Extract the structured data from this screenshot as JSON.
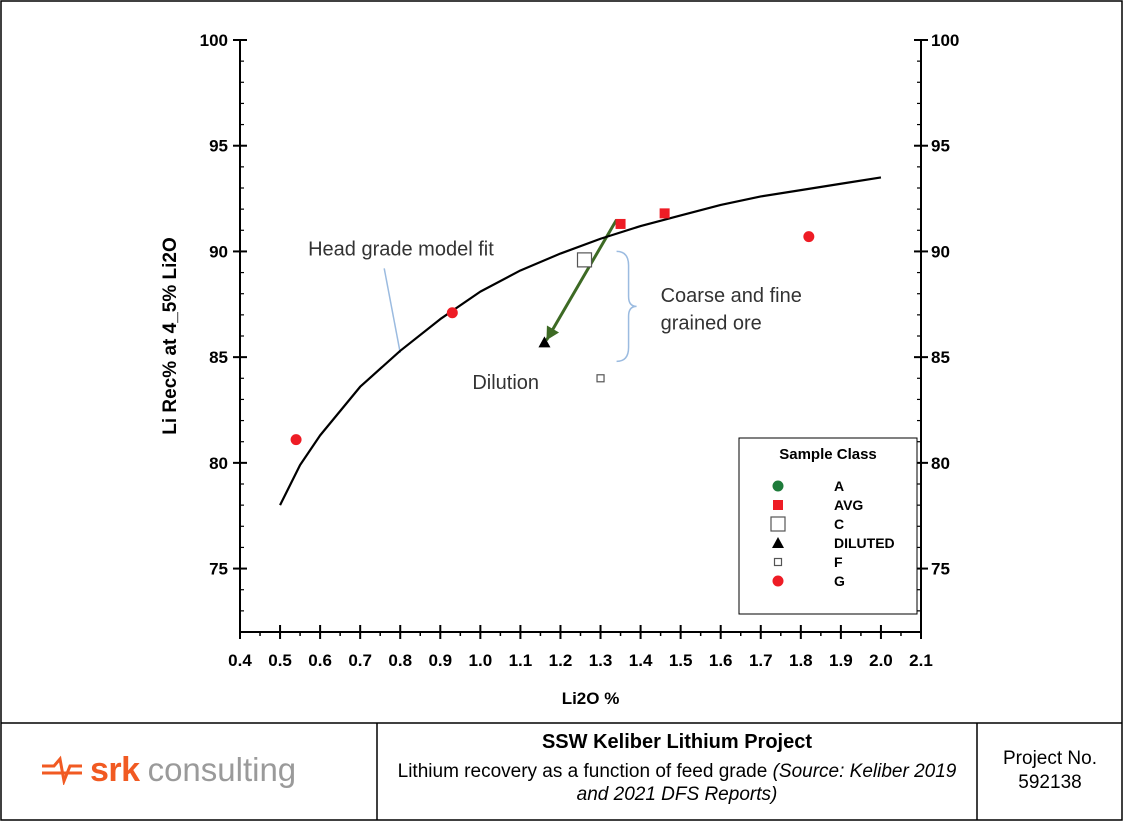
{
  "chart_data": {
    "type": "scatter",
    "title": "",
    "xlabel": "Li2O %",
    "ylabel": "Li Rec% at 4_5% Li2O",
    "xlim": [
      0.4,
      2.1
    ],
    "ylim": [
      72,
      100
    ],
    "x_ticks": [
      0.4,
      0.5,
      0.6,
      0.7,
      0.8,
      0.9,
      1.0,
      1.1,
      1.2,
      1.3,
      1.4,
      1.5,
      1.6,
      1.7,
      1.8,
      1.9,
      2.0,
      2.1
    ],
    "x_tick_labels": [
      "0.4",
      "0.5",
      "0.6",
      "0.7",
      "0.8",
      "0.9",
      "1.0",
      "1.1",
      "1.2",
      "1.3",
      "1.4",
      "1.5",
      "1.6",
      "1.7",
      "1.8",
      "1.9",
      "2.0",
      "2.1"
    ],
    "y_ticks": [
      75,
      80,
      85,
      90,
      95,
      100
    ],
    "y_tick_labels": [
      "75",
      "80",
      "85",
      "90",
      "95",
      "100"
    ],
    "grid": false,
    "legend": {
      "title": "Sample Class",
      "placement": "bottom-right",
      "entries": [
        {
          "label": "A",
          "marker": "circle",
          "color": "#1e7b3a",
          "filled": true,
          "size": "small"
        },
        {
          "label": "AVG",
          "marker": "square",
          "color": "#ee1c25",
          "filled": true,
          "size": "small"
        },
        {
          "label": "C",
          "marker": "square",
          "color": "#555555",
          "filled": false,
          "size": "large"
        },
        {
          "label": "DILUTED",
          "marker": "triangle",
          "color": "#000000",
          "filled": true,
          "size": "small"
        },
        {
          "label": "F",
          "marker": "square",
          "color": "#555555",
          "filled": false,
          "size": "small"
        },
        {
          "label": "G",
          "marker": "circle",
          "color": "#ee1c25",
          "filled": true,
          "size": "small"
        }
      ]
    },
    "series": [
      {
        "name": "AVG",
        "marker": "square",
        "color": "#ee1c25",
        "filled": true,
        "size": "small",
        "points": [
          {
            "x": 1.35,
            "y": 91.3
          },
          {
            "x": 1.46,
            "y": 91.8
          }
        ]
      },
      {
        "name": "C",
        "marker": "square",
        "color": "#555555",
        "filled": false,
        "size": "large",
        "points": [
          {
            "x": 1.26,
            "y": 89.6
          }
        ]
      },
      {
        "name": "DILUTED",
        "marker": "triangle",
        "color": "#000000",
        "filled": true,
        "size": "small",
        "points": [
          {
            "x": 1.16,
            "y": 85.7
          }
        ]
      },
      {
        "name": "F",
        "marker": "square",
        "color": "#555555",
        "filled": false,
        "size": "small",
        "points": [
          {
            "x": 1.3,
            "y": 84.0
          }
        ]
      },
      {
        "name": "G",
        "marker": "circle",
        "color": "#ee1c25",
        "filled": true,
        "size": "small",
        "points": [
          {
            "x": 0.54,
            "y": 81.1
          },
          {
            "x": 0.93,
            "y": 87.1
          },
          {
            "x": 1.82,
            "y": 90.7
          }
        ]
      }
    ],
    "fit_curve": {
      "color": "#000000",
      "points": [
        {
          "x": 0.5,
          "y": 78.0
        },
        {
          "x": 0.55,
          "y": 79.9
        },
        {
          "x": 0.6,
          "y": 81.3
        },
        {
          "x": 0.7,
          "y": 83.6
        },
        {
          "x": 0.8,
          "y": 85.3
        },
        {
          "x": 0.9,
          "y": 86.8
        },
        {
          "x": 1.0,
          "y": 88.1
        },
        {
          "x": 1.1,
          "y": 89.1
        },
        {
          "x": 1.2,
          "y": 89.9
        },
        {
          "x": 1.3,
          "y": 90.6
        },
        {
          "x": 1.4,
          "y": 91.2
        },
        {
          "x": 1.5,
          "y": 91.7
        },
        {
          "x": 1.6,
          "y": 92.2
        },
        {
          "x": 1.7,
          "y": 92.6
        },
        {
          "x": 1.8,
          "y": 92.9
        },
        {
          "x": 1.9,
          "y": 93.2
        },
        {
          "x": 2.0,
          "y": 93.5
        }
      ]
    },
    "annotations": {
      "fit_label": {
        "text": "Head grade model fit",
        "x": 0.57,
        "y": 89.8,
        "color": "#333333"
      },
      "fit_leader": {
        "from": {
          "x": 0.76,
          "y": 89.2
        },
        "to": {
          "x": 0.8,
          "y": 85.2
        },
        "color": "#9bbbe0"
      },
      "dilution_label": {
        "text": "Dilution",
        "x": 0.98,
        "y": 83.5,
        "color": "#333333"
      },
      "dilution_arrow": {
        "from": {
          "x": 1.34,
          "y": 91.5
        },
        "to": {
          "x": 1.165,
          "y": 85.8
        },
        "color": "#3d6a24"
      },
      "bracket": {
        "x": 1.37,
        "y_top": 90.0,
        "y_bottom": 84.8,
        "color": "#9bbbe0"
      },
      "ore_label_line1": {
        "text": "Coarse and fine",
        "x": 1.45,
        "y": 87.6,
        "color": "#333333"
      },
      "ore_label_line2": {
        "text": "grained ore",
        "x": 1.45,
        "y": 86.3,
        "color": "#333333"
      }
    }
  },
  "footer": {
    "logo_brand": "srk",
    "logo_word": "consulting",
    "logo_color": "#f15a22",
    "title": "SSW Keliber Lithium Project",
    "caption": "Lithium recovery as a function of feed grade",
    "source": "(Source: Keliber 2019 and 2021 DFS Reports)",
    "project_label": "Project No.",
    "project_number": "592138"
  }
}
